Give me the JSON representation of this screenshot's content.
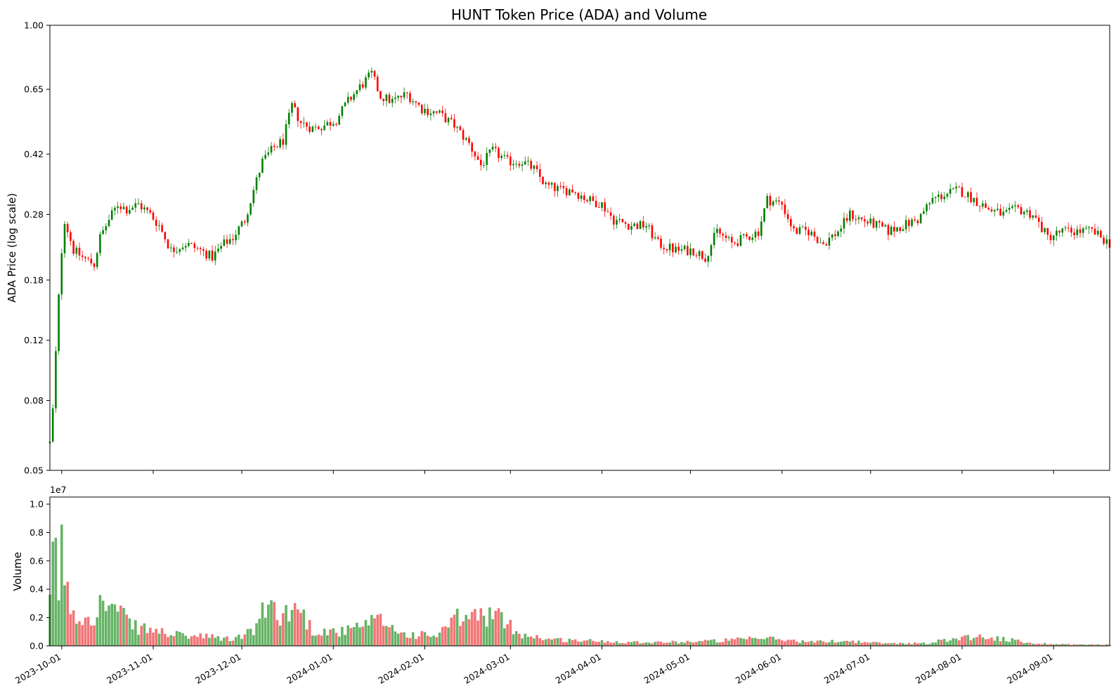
{
  "chart_data": [
    {
      "type": "candlestick",
      "title": "HUNT Token Price (ADA) and Volume",
      "ylabel": "ADA Price (log scale)",
      "yscale": "log",
      "ylim": [
        0.05,
        1.0
      ],
      "yticks": [
        {
          "value": 0.05,
          "label": "0.05"
        },
        {
          "value": 0.08,
          "label": "0.08"
        },
        {
          "value": 0.12,
          "label": "0.12"
        },
        {
          "value": 0.18,
          "label": "0.18"
        },
        {
          "value": 0.28,
          "label": "0.28"
        },
        {
          "value": 0.42,
          "label": "0.42"
        },
        {
          "value": 0.65,
          "label": "0.65"
        },
        {
          "value": 1.0,
          "label": "1.00"
        }
      ],
      "xlim": [
        "2023-09-27",
        "2024-09-20"
      ],
      "colors": {
        "up": "#008000",
        "down": "#ff0000"
      },
      "price_path": [
        [
          "2023-09-27",
          0.06
        ],
        [
          "2023-09-28",
          0.075
        ],
        [
          "2023-09-29",
          0.11
        ],
        [
          "2023-09-30",
          0.16
        ],
        [
          "2023-10-01",
          0.22
        ],
        [
          "2023-10-02",
          0.27
        ],
        [
          "2023-10-05",
          0.22
        ],
        [
          "2023-10-08",
          0.21
        ],
        [
          "2023-10-12",
          0.2
        ],
        [
          "2023-10-14",
          0.24
        ],
        [
          "2023-10-17",
          0.27
        ],
        [
          "2023-10-20",
          0.3
        ],
        [
          "2023-10-23",
          0.29
        ],
        [
          "2023-10-27",
          0.3
        ],
        [
          "2023-10-31",
          0.28
        ],
        [
          "2023-11-03",
          0.26
        ],
        [
          "2023-11-07",
          0.22
        ],
        [
          "2023-11-12",
          0.23
        ],
        [
          "2023-11-17",
          0.22
        ],
        [
          "2023-11-21",
          0.21
        ],
        [
          "2023-11-25",
          0.23
        ],
        [
          "2023-11-28",
          0.24
        ],
        [
          "2023-12-02",
          0.27
        ],
        [
          "2023-12-05",
          0.33
        ],
        [
          "2023-12-08",
          0.4
        ],
        [
          "2023-12-12",
          0.44
        ],
        [
          "2023-12-15",
          0.46
        ],
        [
          "2023-12-18",
          0.58
        ],
        [
          "2023-12-21",
          0.52
        ],
        [
          "2023-12-25",
          0.5
        ],
        [
          "2023-12-29",
          0.51
        ],
        [
          "2024-01-02",
          0.53
        ],
        [
          "2024-01-06",
          0.6
        ],
        [
          "2024-01-10",
          0.66
        ],
        [
          "2024-01-14",
          0.72
        ],
        [
          "2024-01-17",
          0.62
        ],
        [
          "2024-01-21",
          0.6
        ],
        [
          "2024-01-26",
          0.63
        ],
        [
          "2024-01-31",
          0.57
        ],
        [
          "2024-02-06",
          0.55
        ],
        [
          "2024-02-11",
          0.51
        ],
        [
          "2024-02-16",
          0.45
        ],
        [
          "2024-02-20",
          0.39
        ],
        [
          "2024-02-24",
          0.43
        ],
        [
          "2024-02-29",
          0.4
        ],
        [
          "2024-03-05",
          0.4
        ],
        [
          "2024-03-09",
          0.38
        ],
        [
          "2024-03-13",
          0.34
        ],
        [
          "2024-03-18",
          0.33
        ],
        [
          "2024-03-22",
          0.33
        ],
        [
          "2024-03-27",
          0.31
        ],
        [
          "2024-04-01",
          0.3
        ],
        [
          "2024-04-05",
          0.27
        ],
        [
          "2024-04-11",
          0.26
        ],
        [
          "2024-04-16",
          0.26
        ],
        [
          "2024-04-20",
          0.23
        ],
        [
          "2024-04-26",
          0.22
        ],
        [
          "2024-05-02",
          0.22
        ],
        [
          "2024-05-06",
          0.21
        ],
        [
          "2024-05-10",
          0.25
        ],
        [
          "2024-05-15",
          0.23
        ],
        [
          "2024-05-20",
          0.24
        ],
        [
          "2024-05-24",
          0.25
        ],
        [
          "2024-05-27",
          0.31
        ],
        [
          "2024-06-01",
          0.3
        ],
        [
          "2024-06-05",
          0.25
        ],
        [
          "2024-06-10",
          0.25
        ],
        [
          "2024-06-15",
          0.23
        ],
        [
          "2024-06-20",
          0.25
        ],
        [
          "2024-06-24",
          0.28
        ],
        [
          "2024-06-28",
          0.27
        ],
        [
          "2024-07-03",
          0.26
        ],
        [
          "2024-07-07",
          0.25
        ],
        [
          "2024-07-12",
          0.26
        ],
        [
          "2024-07-17",
          0.27
        ],
        [
          "2024-07-22",
          0.31
        ],
        [
          "2024-07-26",
          0.32
        ],
        [
          "2024-07-31",
          0.33
        ],
        [
          "2024-08-05",
          0.31
        ],
        [
          "2024-08-10",
          0.29
        ],
        [
          "2024-08-15",
          0.28
        ],
        [
          "2024-08-20",
          0.29
        ],
        [
          "2024-08-25",
          0.28
        ],
        [
          "2024-08-30",
          0.24
        ],
        [
          "2024-09-04",
          0.25
        ],
        [
          "2024-09-09",
          0.25
        ],
        [
          "2024-09-14",
          0.25
        ],
        [
          "2024-09-20",
          0.23
        ]
      ]
    },
    {
      "type": "bar",
      "ylabel": "Volume",
      "scale_note": "1e7",
      "ylim": [
        0,
        10500000
      ],
      "yticks": [
        {
          "value": 0,
          "label": "0.0"
        },
        {
          "value": 2000000,
          "label": "0.2"
        },
        {
          "value": 4000000,
          "label": "0.4"
        },
        {
          "value": 6000000,
          "label": "0.6"
        },
        {
          "value": 8000000,
          "label": "0.8"
        },
        {
          "value": 10000000,
          "label": "1.0"
        }
      ],
      "colors": {
        "up": "#008000",
        "down": "#e8191a"
      },
      "volume_path": [
        [
          "2023-09-27",
          2900000
        ],
        [
          "2023-09-29",
          9700000
        ],
        [
          "2023-09-30",
          4500000
        ],
        [
          "2023-10-01",
          7500000
        ],
        [
          "2023-10-02",
          5300000
        ],
        [
          "2023-10-03",
          3900000
        ],
        [
          "2023-10-06",
          2200000
        ],
        [
          "2023-10-12",
          2600000
        ],
        [
          "2023-10-15",
          3400000
        ],
        [
          "2023-10-20",
          2700000
        ],
        [
          "2023-10-25",
          1500000
        ],
        [
          "2023-11-01",
          1200000
        ],
        [
          "2023-11-10",
          800000
        ],
        [
          "2023-11-20",
          700000
        ],
        [
          "2023-11-28",
          500000
        ],
        [
          "2023-12-05",
          1200000
        ],
        [
          "2023-12-10",
          3300000
        ],
        [
          "2023-12-15",
          2400000
        ],
        [
          "2023-12-20",
          3100000
        ],
        [
          "2023-12-25",
          1200000
        ],
        [
          "2024-01-05",
          1100000
        ],
        [
          "2024-01-17",
          2000000
        ],
        [
          "2024-01-25",
          900000
        ],
        [
          "2024-02-05",
          800000
        ],
        [
          "2024-02-12",
          2100000
        ],
        [
          "2024-02-24",
          2500000
        ],
        [
          "2024-03-05",
          900000
        ],
        [
          "2024-03-15",
          500000
        ],
        [
          "2024-03-28",
          400000
        ],
        [
          "2024-04-10",
          300000
        ],
        [
          "2024-04-25",
          300000
        ],
        [
          "2024-05-10",
          400000
        ],
        [
          "2024-05-27",
          600000
        ],
        [
          "2024-06-10",
          300000
        ],
        [
          "2024-06-22",
          400000
        ],
        [
          "2024-07-05",
          200000
        ],
        [
          "2024-07-20",
          200000
        ],
        [
          "2024-08-01",
          700000
        ],
        [
          "2024-08-10",
          700000
        ],
        [
          "2024-08-25",
          200000
        ],
        [
          "2024-09-10",
          100000
        ],
        [
          "2024-09-20",
          100000
        ]
      ]
    }
  ],
  "xaxis": {
    "ticks": [
      {
        "date": "2023-10-01",
        "label": "2023-10-01"
      },
      {
        "date": "2023-11-01",
        "label": "2023-11-01"
      },
      {
        "date": "2023-12-01",
        "label": "2023-12-01"
      },
      {
        "date": "2024-01-01",
        "label": "2024-01-01"
      },
      {
        "date": "2024-02-01",
        "label": "2024-02-01"
      },
      {
        "date": "2024-03-01",
        "label": "2024-03-01"
      },
      {
        "date": "2024-04-01",
        "label": "2024-04-01"
      },
      {
        "date": "2024-05-01",
        "label": "2024-05-01"
      },
      {
        "date": "2024-06-01",
        "label": "2024-06-01"
      },
      {
        "date": "2024-07-01",
        "label": "2024-07-01"
      },
      {
        "date": "2024-08-01",
        "label": "2024-08-01"
      },
      {
        "date": "2024-09-01",
        "label": "2024-09-01"
      }
    ]
  }
}
